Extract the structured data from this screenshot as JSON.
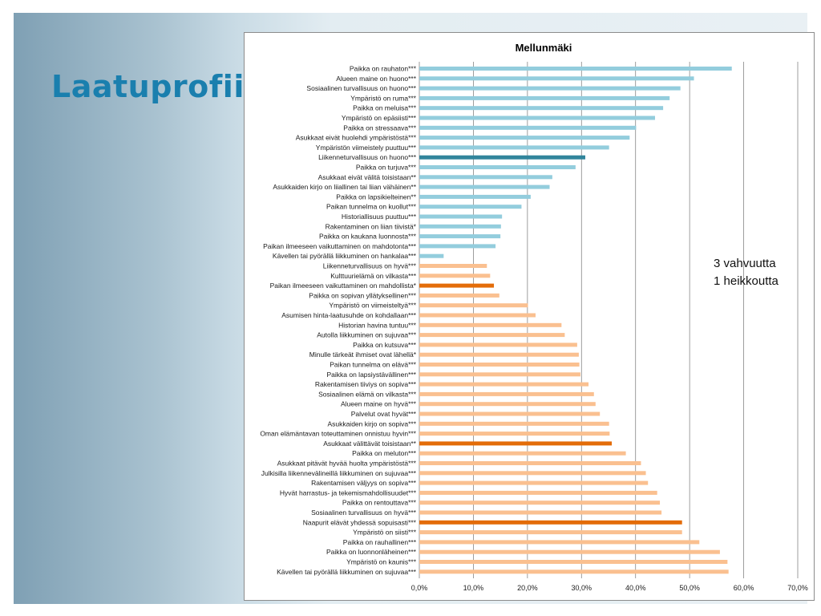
{
  "slide": {
    "title": "Laatuprofiili"
  },
  "chart_data": {
    "type": "bar",
    "orientation": "horizontal",
    "title": "Mellunmäki",
    "xlabel": "",
    "ylabel": "",
    "xlim": [
      0,
      70
    ],
    "xticks": [
      "0,0%",
      "10,0%",
      "20,0%",
      "30,0%",
      "40,0%",
      "50,0%",
      "60,0%",
      "70,0%"
    ],
    "grid": true,
    "legend": "none",
    "annotation_lines": [
      "3 vahvuutta",
      "1 heikkoutta"
    ],
    "colors": {
      "negative": "#93cddd",
      "negative_highlight": "#31859c",
      "positive": "#fac090",
      "positive_highlight": "#e36c09",
      "grid": "#868686"
    },
    "categories": [
      "Paikka on rauhaton***",
      "Alueen maine on huono***",
      "Sosiaalinen turvallisuus on huono***",
      "Ympäristö on ruma***",
      "Paikka on meluisa***",
      "Ympäristö on epäsiisti***",
      "Paikka on stressaava***",
      "Asukkaat eivät huolehdi ympäristöstä***",
      "Ympäristön viimeistely puuttuu***",
      "Liikenneturvallisuus on huono***",
      "Paikka on turjuva***",
      "Asukkaat eivät välitä toisistaan**",
      "Asukkaiden kirjo on liiallinen tai liian vähäinen**",
      "Paikka on lapsikielteinen**",
      "Paikan tunnelma on kuollut***",
      "Historiallisuus puuttuu***",
      "Rakentaminen on liian tiivistä*",
      "Paikka on kaukana luonnosta***",
      "Paikan ilmeeseen vaikuttaminen on mahdotonta***",
      "Kävellen tai pyörällä liikkuminen on hankalaa***",
      "Liikenneturvallisuus on hyvä***",
      "Kulttuurielämä on vilkasta***",
      "Paikan ilmeeseen vaikuttaminen on mahdollista*",
      "Paikka on sopivan yllätyksellinen***",
      "Ympäristö on viimeisteltyä***",
      "Asumisen hinta-laatusuhde on kohdallaan***",
      "Historian havina tuntuu***",
      "Autolla liikkuminen on sujuvaa***",
      "Paikka on kutsuva***",
      "Minulle tärkeät ihmiset ovat lähellä*",
      "Paikan tunnelma on elävä***",
      "Paikka on lapsiystävällinen***",
      "Rakentamisen tiiviys on sopiva***",
      "Sosiaalinen elämä on vilkasta***",
      "Alueen maine on hyvä***",
      "Palvelut ovat hyvät***",
      "Asukkaiden kirjo on sopiva***",
      "Oman elämäntavan toteuttaminen onnistuu hyvin***",
      "Asukkaat välittävät toisistaan**",
      "Paikka on meluton***",
      "Asukkaat pitävät hyvää huolta ympäristöstä***",
      "Julkisilla liikennevälineillä liikkuminen on sujuvaa***",
      "Rakentamisen väljyys on sopiva***",
      "Hyvät harrastus- ja tekemismahdollisuudet***",
      "Paikka on rentouttava***",
      "Sosiaalinen turvallisuus on hyvä***",
      "Naapurit elävät yhdessä sopuisasti***",
      "Ympäristö on siisti***",
      "Paikka on rauhallinen***",
      "Paikka on luonnonläheinen***",
      "Ympäristö on kaunis***",
      "Kävellen tai pyörällä liikkuminen on sujuvaa***"
    ],
    "values": [
      57.8,
      50.8,
      48.3,
      46.3,
      45.1,
      43.6,
      40.1,
      38.9,
      35.1,
      30.7,
      28.9,
      24.6,
      24.1,
      20.6,
      18.9,
      15.3,
      15.1,
      15.0,
      14.1,
      4.5,
      12.5,
      13.1,
      13.8,
      14.8,
      20.1,
      21.5,
      26.3,
      26.9,
      29.2,
      29.5,
      29.6,
      29.8,
      31.3,
      32.3,
      32.6,
      33.4,
      35.1,
      35.2,
      35.6,
      38.2,
      41.0,
      41.9,
      42.3,
      44.0,
      44.5,
      44.8,
      48.6,
      48.6,
      51.8,
      55.6,
      57.0,
      57.2
    ],
    "groups": [
      "negative",
      "negative",
      "negative",
      "negative",
      "negative",
      "negative",
      "negative",
      "negative",
      "negative",
      "negative_highlight",
      "negative",
      "negative",
      "negative",
      "negative",
      "negative",
      "negative",
      "negative",
      "negative",
      "negative",
      "negative",
      "positive",
      "positive",
      "positive_highlight",
      "positive",
      "positive",
      "positive",
      "positive",
      "positive",
      "positive",
      "positive",
      "positive",
      "positive",
      "positive",
      "positive",
      "positive",
      "positive",
      "positive",
      "positive",
      "positive_highlight",
      "positive",
      "positive",
      "positive",
      "positive",
      "positive",
      "positive",
      "positive",
      "positive_highlight",
      "positive",
      "positive",
      "positive",
      "positive",
      "positive"
    ]
  }
}
